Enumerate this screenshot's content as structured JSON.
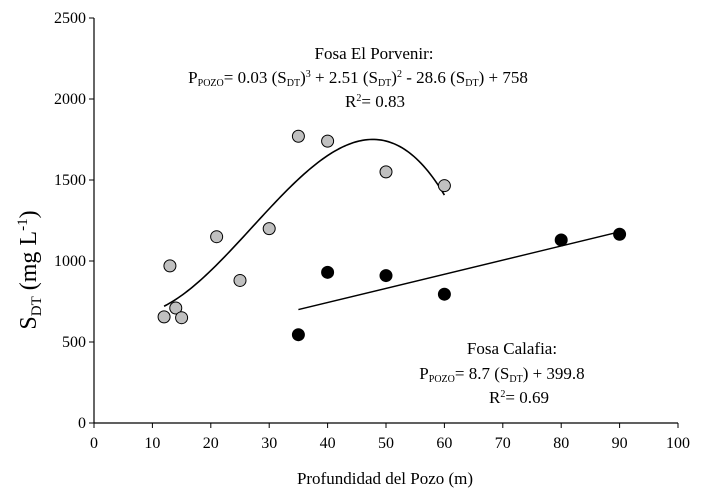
{
  "chart_data": {
    "type": "scatter",
    "title": "",
    "xlabel": "Profundidad del Pozo (m)",
    "ylabel": {
      "base": "S",
      "sub": "DT",
      "rest": " (mg L",
      "sup": "-1",
      "close": ")"
    },
    "xlim": [
      0,
      100
    ],
    "ylim": [
      0,
      2500
    ],
    "xticks": [
      0,
      10,
      20,
      30,
      40,
      50,
      60,
      70,
      80,
      90,
      100
    ],
    "yticks": [
      0,
      500,
      1000,
      1500,
      2000,
      2500
    ],
    "grid": false,
    "series": [
      {
        "color": "#c0c0c0",
        "points": [
          {
            "x": 12,
            "y": 655
          },
          {
            "x": 13,
            "y": 970
          },
          {
            "x": 14,
            "y": 710
          },
          {
            "x": 15,
            "y": 650
          },
          {
            "x": 21,
            "y": 1150
          },
          {
            "x": 25,
            "y": 880
          },
          {
            "x": 30,
            "y": 1200
          },
          {
            "x": 35,
            "y": 1770
          },
          {
            "x": 40,
            "y": 1740
          },
          {
            "x": 50,
            "y": 1550
          },
          {
            "x": 60,
            "y": 1465
          }
        ],
        "fit": {
          "type": "polynomial",
          "coefficients": [
            0.03,
            2.51,
            -28.6,
            758
          ],
          "x_range": [
            12,
            60
          ]
        }
      },
      {
        "color": "#000000",
        "points": [
          {
            "x": 35,
            "y": 545
          },
          {
            "x": 40,
            "y": 930
          },
          {
            "x": 50,
            "y": 910
          },
          {
            "x": 60,
            "y": 795
          },
          {
            "x": 80,
            "y": 1130
          },
          {
            "x": 90,
            "y": 1165
          }
        ],
        "fit": {
          "type": "linear",
          "x_range": [
            35,
            90
          ],
          "y_range": [
            700,
            1180
          ]
        }
      }
    ],
    "annotations": {
      "porvenir": {
        "name": "Fosa El Porvenir:",
        "equation": {
          "lhs": "P",
          "lhs_sub": "POZO",
          "eq": "= 0.03 (S",
          "t1_sub": "DT",
          "t1_close": ")",
          "t1_sup": "3",
          "plus1": " + 2.51 (S",
          "t2_sub": "DT",
          "t2_close": ")",
          "t2_sup": "2",
          "minus": " - 28.6 (S",
          "t3_sub": "DT",
          "t3_close": ") + 758"
        },
        "r2": {
          "base": "R",
          "sup": "2",
          "value": "= 0.83"
        }
      },
      "calafia": {
        "name": "Fosa Calafia:",
        "equation": {
          "lhs": "P",
          "lhs_sub": "POZO",
          "eq": "= 8.7 (S",
          "t1_sub": "DT",
          "t1_close": ") + 399.8"
        },
        "r2": {
          "base": "R",
          "sup": "2",
          "value": "= 0.69"
        }
      }
    }
  }
}
